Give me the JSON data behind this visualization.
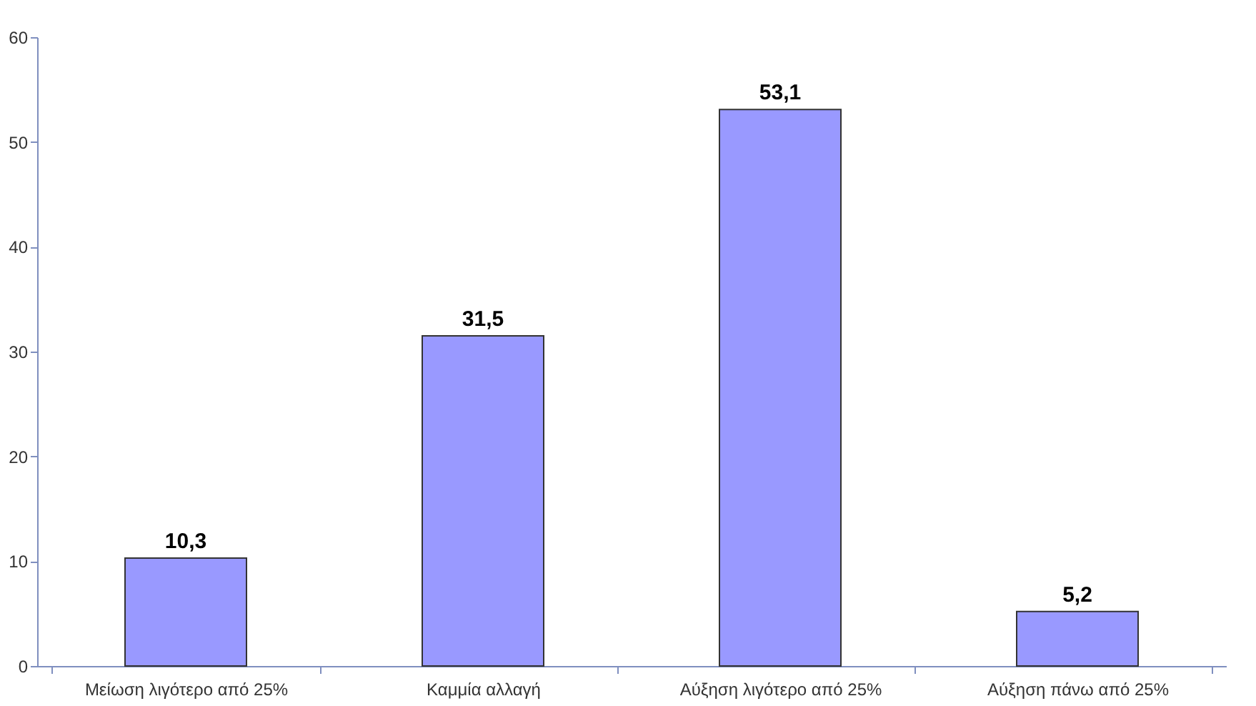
{
  "chart_data": {
    "type": "bar",
    "categories": [
      "Μείωση λιγότερο από 25%",
      "Καμμία αλλαγή",
      "Αύξηση λιγότερο από 25%",
      "Αύξηση πάνω από 25%"
    ],
    "values": [
      10.3,
      31.5,
      53.1,
      5.2
    ],
    "value_labels": [
      "10,3",
      "31,5",
      "53,1",
      "5,2"
    ],
    "color": "#9999ff",
    "ylim": [
      0,
      60
    ],
    "yticks": [
      0,
      10,
      20,
      30,
      40,
      50,
      60
    ],
    "grid": false
  }
}
